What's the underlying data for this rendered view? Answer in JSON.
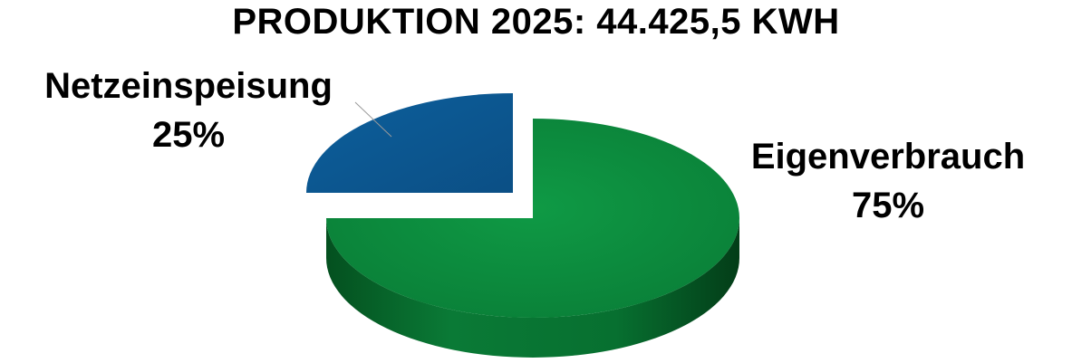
{
  "chart_data": {
    "type": "pie",
    "title": "PRODUKTION 2025: 44.425,5 KWH",
    "slices": [
      {
        "name": "Eigenverbrauch",
        "value": 75,
        "label": "75%",
        "color": "#0a8a3e",
        "side_color": "#05592a"
      },
      {
        "name": "Netzeinspeisung",
        "value": 25,
        "label": "25%",
        "color": "#0c5a95",
        "side_color": "#07355c"
      }
    ],
    "labels_style": "name above percent, outside slices",
    "three_d": true,
    "exploded_slice": "Netzeinspeisung"
  }
}
